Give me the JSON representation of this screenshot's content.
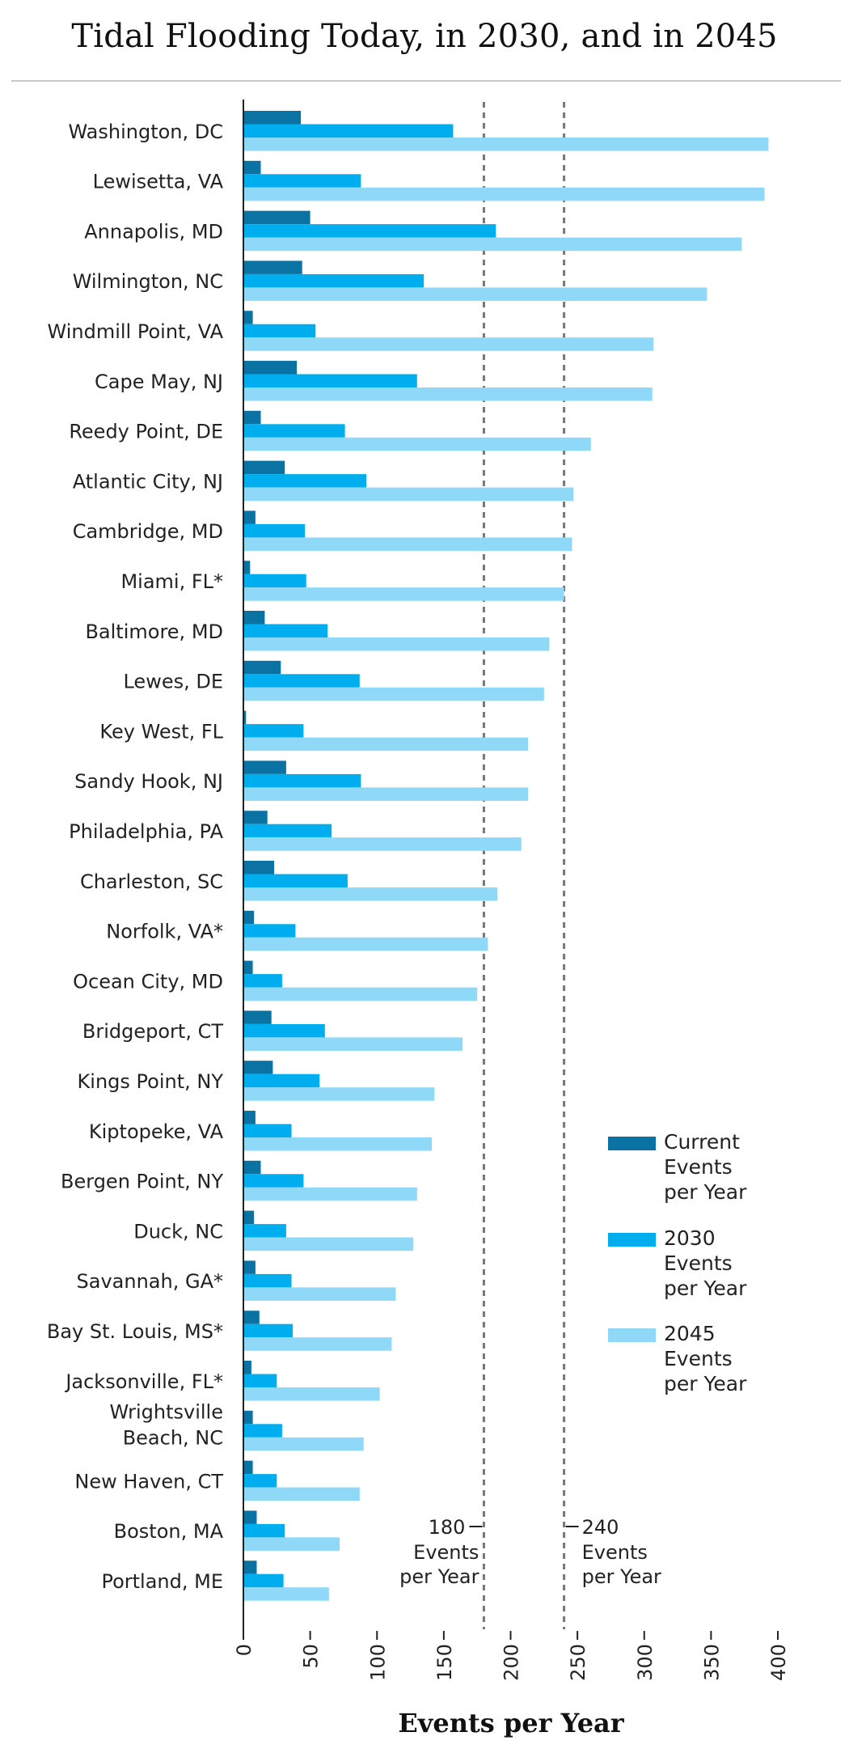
{
  "chart_data": {
    "type": "bar",
    "orientation": "horizontal",
    "title": "Tidal Flooding Today, in 2030, and in 2045",
    "xlabel": "Events per Year",
    "ylabel": "",
    "xlim": [
      0,
      400
    ],
    "x_ticks": [
      "0",
      "50",
      "100",
      "150",
      "200",
      "250",
      "300",
      "350",
      "400"
    ],
    "categories": [
      "Washington, DC",
      "Lewisetta, VA",
      "Annapolis, MD",
      "Wilmington, NC",
      "Windmill Point, VA",
      "Cape May, NJ",
      "Reedy Point, DE",
      "Atlantic City, NJ",
      "Cambridge, MD",
      "Miami, FL*",
      "Baltimore, MD",
      "Lewes, DE",
      "Key West, FL",
      "Sandy Hook, NJ",
      "Philadelphia, PA",
      "Charleston, SC",
      "Norfolk, VA*",
      "Ocean City, MD",
      "Bridgeport, CT",
      "Kings Point, NY",
      "Kiptopeke, VA",
      "Bergen Point, NY",
      "Duck, NC",
      "Savannah, GA*",
      "Bay St. Louis, MS*",
      "Jacksonville, FL*",
      "Wrightsville Beach, NC",
      "New Haven, CT",
      "Boston, MA",
      "Portland, ME"
    ],
    "series": [
      {
        "name": "Current Events per Year",
        "color": "#0b73a3",
        "values": [
          43,
          13,
          50,
          44,
          7,
          40,
          13,
          31,
          9,
          5,
          16,
          28,
          2,
          32,
          18,
          23,
          8,
          7,
          21,
          22,
          9,
          13,
          8,
          9,
          12,
          6,
          7,
          7,
          10,
          10
        ]
      },
      {
        "name": "2030 Events per Year",
        "color": "#00aeef",
        "values": [
          157,
          88,
          189,
          135,
          54,
          130,
          76,
          92,
          46,
          47,
          63,
          87,
          45,
          88,
          66,
          78,
          39,
          29,
          61,
          57,
          36,
          45,
          32,
          36,
          37,
          25,
          29,
          25,
          31,
          30
        ]
      },
      {
        "name": "2045 Events per Year",
        "color": "#8fd8f8",
        "values": [
          393,
          390,
          373,
          347,
          307,
          306,
          260,
          247,
          246,
          240,
          229,
          225,
          213,
          213,
          208,
          190,
          183,
          175,
          164,
          143,
          141,
          130,
          127,
          114,
          111,
          102,
          90,
          87,
          72,
          64
        ]
      }
    ],
    "reference_lines": [
      {
        "value": 180,
        "label": "180 Events per Year"
      },
      {
        "value": 240,
        "label": "240 Events per Year"
      }
    ],
    "legend_position": "right",
    "grid": false,
    "colors": {
      "axis": "#222222",
      "reference": "#777777"
    }
  }
}
